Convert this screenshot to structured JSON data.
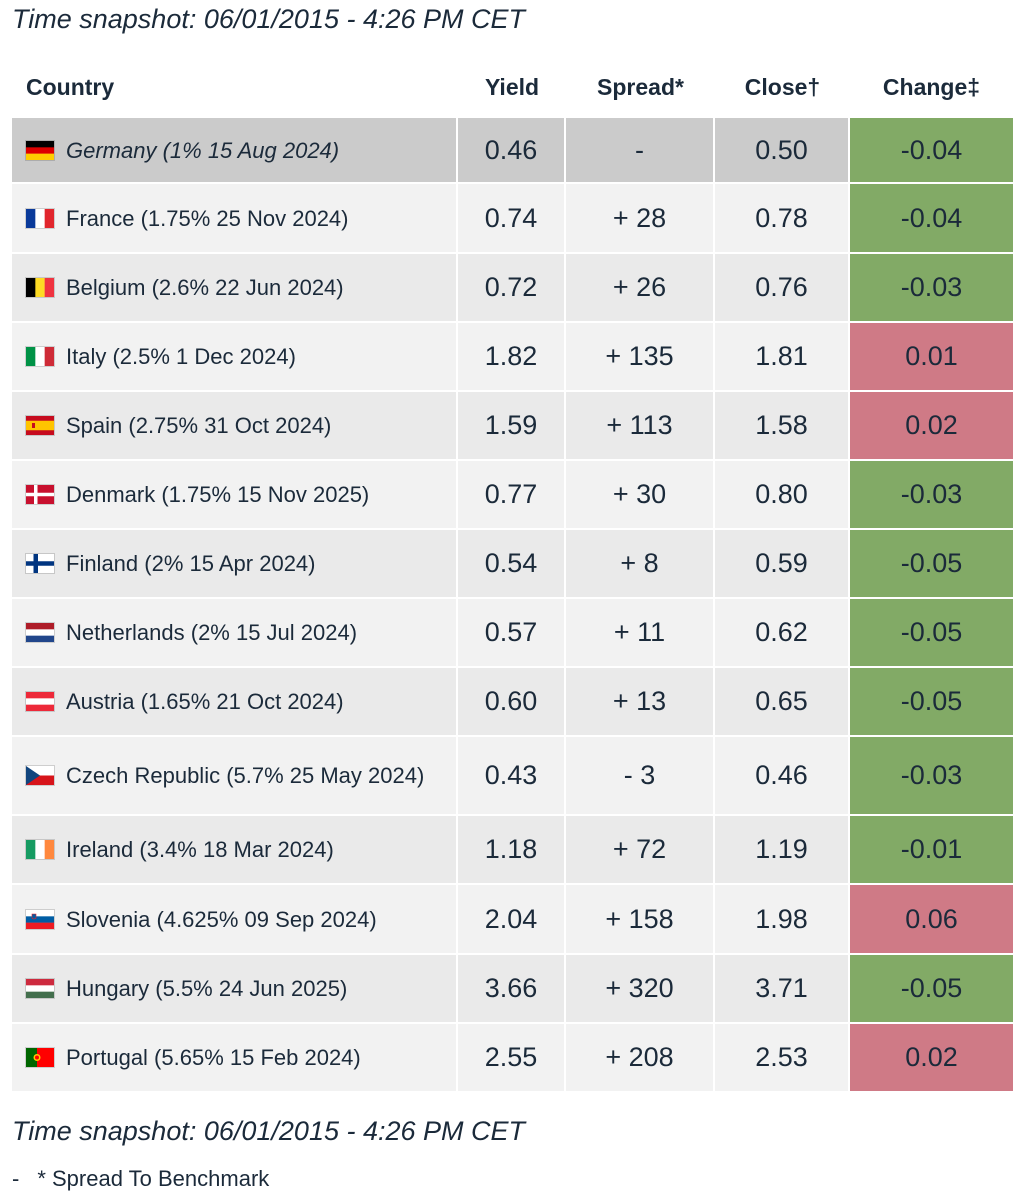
{
  "snapshot_label": "Time snapshot: 06/01/2015 - 4:26 PM CET",
  "table": {
    "headers": {
      "country": "Country",
      "yield": "Yield",
      "spread": "Spread*",
      "close": "Close†",
      "change": "Change‡"
    },
    "rows": [
      {
        "flag": "germany-flag-icon",
        "country": "Germany (1% 15 Aug 2024)",
        "yield": "0.46",
        "spread": "-",
        "close": "0.50",
        "change": "-0.04",
        "direction": "down"
      },
      {
        "flag": "france-flag-icon",
        "country": "France (1.75% 25 Nov 2024)",
        "yield": "0.74",
        "spread": "+ 28",
        "close": "0.78",
        "change": "-0.04",
        "direction": "down"
      },
      {
        "flag": "belgium-flag-icon",
        "country": "Belgium (2.6% 22 Jun 2024)",
        "yield": "0.72",
        "spread": "+ 26",
        "close": "0.76",
        "change": "-0.03",
        "direction": "down"
      },
      {
        "flag": "italy-flag-icon",
        "country": "Italy (2.5% 1 Dec 2024)",
        "yield": "1.82",
        "spread": "+ 135",
        "close": "1.81",
        "change": "0.01",
        "direction": "up"
      },
      {
        "flag": "spain-flag-icon",
        "country": "Spain (2.75% 31 Oct 2024)",
        "yield": "1.59",
        "spread": "+ 113",
        "close": "1.58",
        "change": "0.02",
        "direction": "up"
      },
      {
        "flag": "denmark-flag-icon",
        "country": "Denmark (1.75% 15 Nov 2025)",
        "yield": "0.77",
        "spread": "+ 30",
        "close": "0.80",
        "change": "-0.03",
        "direction": "down"
      },
      {
        "flag": "finland-flag-icon",
        "country": "Finland (2% 15 Apr 2024)",
        "yield": "0.54",
        "spread": "+ 8",
        "close": "0.59",
        "change": "-0.05",
        "direction": "down"
      },
      {
        "flag": "netherlands-flag-icon",
        "country": "Netherlands (2% 15 Jul 2024)",
        "yield": "0.57",
        "spread": "+ 11",
        "close": "0.62",
        "change": "-0.05",
        "direction": "down"
      },
      {
        "flag": "austria-flag-icon",
        "country": "Austria (1.65% 21 Oct 2024)",
        "yield": "0.60",
        "spread": "+ 13",
        "close": "0.65",
        "change": "-0.05",
        "direction": "down"
      },
      {
        "flag": "czech-flag-icon",
        "country": "Czech Republic (5.7% 25 May 2024)",
        "yield": "0.43",
        "spread": "- 3",
        "close": "0.46",
        "change": "-0.03",
        "direction": "down"
      },
      {
        "flag": "ireland-flag-icon",
        "country": "Ireland (3.4% 18 Mar 2024)",
        "yield": "1.18",
        "spread": "+ 72",
        "close": "1.19",
        "change": "-0.01",
        "direction": "down"
      },
      {
        "flag": "slovenia-flag-icon",
        "country": "Slovenia (4.625% 09 Sep 2024)",
        "yield": "2.04",
        "spread": "+ 158",
        "close": "1.98",
        "change": "0.06",
        "direction": "up"
      },
      {
        "flag": "hungary-flag-icon",
        "country": "Hungary (5.5% 24 Jun 2025)",
        "yield": "3.66",
        "spread": "+ 320",
        "close": "3.71",
        "change": "-0.05",
        "direction": "down"
      },
      {
        "flag": "portugal-flag-icon",
        "country": "Portugal (5.65% 15 Feb 2024)",
        "yield": "2.55",
        "spread": "+ 208",
        "close": "2.53",
        "change": "0.02",
        "direction": "up"
      }
    ]
  },
  "footnote": {
    "dash": "-",
    "text": "* Spread To Benchmark"
  },
  "colors": {
    "change_down": "#82aa66",
    "change_up": "#cf7a86",
    "benchmark_row": "#cbcbcb",
    "text": "#1b2a3a"
  }
}
